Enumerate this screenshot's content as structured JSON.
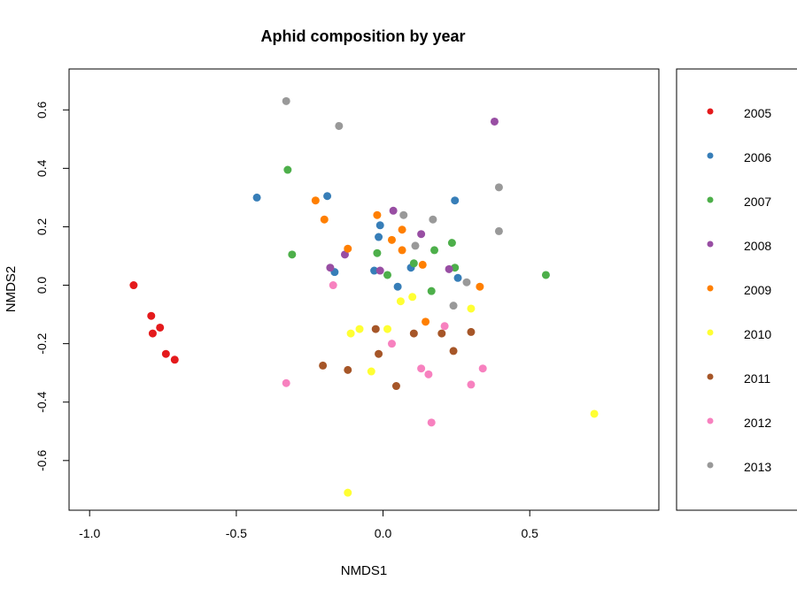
{
  "chart_data": {
    "type": "scatter",
    "title": "Aphid composition by year",
    "xlabel": "NMDS1",
    "ylabel": "NMDS2",
    "xlim": [
      -1.07,
      0.94
    ],
    "ylim": [
      -0.77,
      0.74
    ],
    "xticks": [
      -1.0,
      -0.5,
      0.0,
      0.5
    ],
    "xtick_labels": [
      "-1.0",
      "-0.5",
      "0.0",
      "0.5"
    ],
    "yticks": [
      -0.6,
      -0.4,
      -0.2,
      0.0,
      0.2,
      0.4,
      0.6
    ],
    "ytick_labels": [
      "-0.6",
      "-0.4",
      "-0.2",
      "0.0",
      "0.2",
      "0.4",
      "0.6"
    ],
    "grid": false,
    "legend_position": "right (outside)",
    "series": [
      {
        "name": "2005",
        "color": "#E41A1C",
        "points": [
          [
            -0.85,
            0.0
          ],
          [
            -0.79,
            -0.105
          ],
          [
            -0.785,
            -0.165
          ],
          [
            -0.76,
            -0.145
          ],
          [
            -0.74,
            -0.235
          ],
          [
            -0.71,
            -0.255
          ]
        ]
      },
      {
        "name": "2006",
        "color": "#377EB8",
        "points": [
          [
            -0.43,
            0.3
          ],
          [
            -0.19,
            0.305
          ],
          [
            -0.165,
            0.045
          ],
          [
            -0.01,
            0.205
          ],
          [
            -0.015,
            0.165
          ],
          [
            -0.03,
            0.05
          ],
          [
            0.05,
            -0.005
          ],
          [
            0.095,
            0.06
          ],
          [
            0.245,
            0.29
          ],
          [
            0.255,
            0.025
          ]
        ]
      },
      {
        "name": "2007",
        "color": "#4DAF4A",
        "points": [
          [
            -0.325,
            0.395
          ],
          [
            -0.31,
            0.105
          ],
          [
            -0.02,
            0.11
          ],
          [
            0.015,
            0.035
          ],
          [
            0.105,
            0.075
          ],
          [
            0.165,
            -0.02
          ],
          [
            0.175,
            0.12
          ],
          [
            0.235,
            0.145
          ],
          [
            0.245,
            0.06
          ],
          [
            0.555,
            0.035
          ]
        ]
      },
      {
        "name": "2008",
        "color": "#984EA3",
        "points": [
          [
            -0.18,
            0.06
          ],
          [
            -0.13,
            0.105
          ],
          [
            -0.01,
            0.05
          ],
          [
            0.035,
            0.255
          ],
          [
            0.13,
            0.175
          ],
          [
            0.225,
            0.055
          ],
          [
            0.38,
            0.56
          ]
        ]
      },
      {
        "name": "2009",
        "color": "#FF7F00",
        "points": [
          [
            -0.23,
            0.29
          ],
          [
            -0.2,
            0.225
          ],
          [
            -0.12,
            0.125
          ],
          [
            -0.02,
            0.24
          ],
          [
            0.03,
            0.155
          ],
          [
            0.065,
            0.19
          ],
          [
            0.065,
            0.12
          ],
          [
            0.135,
            0.07
          ],
          [
            0.145,
            -0.125
          ],
          [
            0.33,
            -0.005
          ]
        ]
      },
      {
        "name": "2010",
        "color": "#FFFF33",
        "points": [
          [
            -0.11,
            -0.165
          ],
          [
            -0.08,
            -0.15
          ],
          [
            -0.04,
            -0.295
          ],
          [
            0.015,
            -0.15
          ],
          [
            0.06,
            -0.055
          ],
          [
            0.1,
            -0.04
          ],
          [
            -0.12,
            -0.71
          ],
          [
            0.3,
            -0.08
          ],
          [
            0.72,
            -0.44
          ]
        ]
      },
      {
        "name": "2011",
        "color": "#A65628",
        "points": [
          [
            -0.205,
            -0.275
          ],
          [
            -0.12,
            -0.29
          ],
          [
            -0.025,
            -0.15
          ],
          [
            -0.015,
            -0.235
          ],
          [
            0.045,
            -0.345
          ],
          [
            0.105,
            -0.165
          ],
          [
            0.2,
            -0.165
          ],
          [
            0.24,
            -0.225
          ],
          [
            0.3,
            -0.16
          ]
        ]
      },
      {
        "name": "2012",
        "color": "#F781BF",
        "points": [
          [
            -0.17,
            0.0
          ],
          [
            -0.33,
            -0.335
          ],
          [
            0.03,
            -0.2
          ],
          [
            0.13,
            -0.285
          ],
          [
            0.155,
            -0.305
          ],
          [
            0.165,
            -0.47
          ],
          [
            0.21,
            -0.14
          ],
          [
            0.3,
            -0.34
          ],
          [
            0.34,
            -0.285
          ]
        ]
      },
      {
        "name": "2013",
        "color": "#999999",
        "points": [
          [
            -0.33,
            0.63
          ],
          [
            -0.15,
            0.545
          ],
          [
            0.07,
            0.24
          ],
          [
            0.11,
            0.135
          ],
          [
            0.17,
            0.225
          ],
          [
            0.24,
            -0.07
          ],
          [
            0.285,
            0.01
          ],
          [
            0.395,
            0.335
          ],
          [
            0.395,
            0.185
          ]
        ]
      }
    ]
  }
}
